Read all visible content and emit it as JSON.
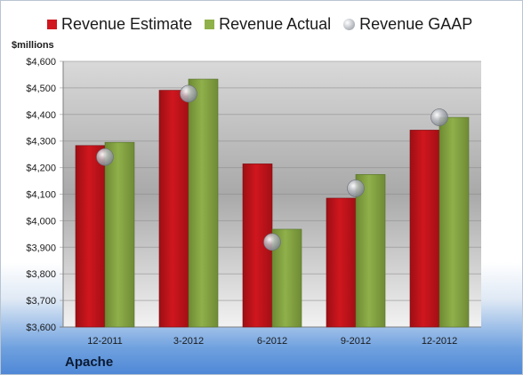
{
  "unit_label": "$millions",
  "company": "Apache",
  "colors": {
    "estimate": "#d0161e",
    "actual": "#8fb04a",
    "gaap": "#b9bcc2"
  },
  "chart_data": {
    "type": "bar",
    "categories": [
      "12-2011",
      "3-2012",
      "6-2012",
      "9-2012",
      "12-2012"
    ],
    "series": [
      {
        "name": "Revenue Estimate",
        "kind": "bar",
        "values": [
          4283,
          4491,
          4214,
          4085,
          4341
        ]
      },
      {
        "name": "Revenue Actual",
        "kind": "bar",
        "values": [
          4295,
          4533,
          3968,
          4174,
          4389
        ]
      },
      {
        "name": "Revenue GAAP",
        "kind": "marker",
        "values": [
          4240,
          4478,
          3920,
          4122,
          4389
        ]
      }
    ],
    "ylim": [
      3600,
      4600
    ],
    "yticks": [
      "$3,600",
      "$3,700",
      "$3,800",
      "$3,900",
      "$4,000",
      "$4,100",
      "$4,200",
      "$4,300",
      "$4,400",
      "$4,500",
      "$4,600"
    ],
    "grid": true,
    "legend_position": "top"
  }
}
